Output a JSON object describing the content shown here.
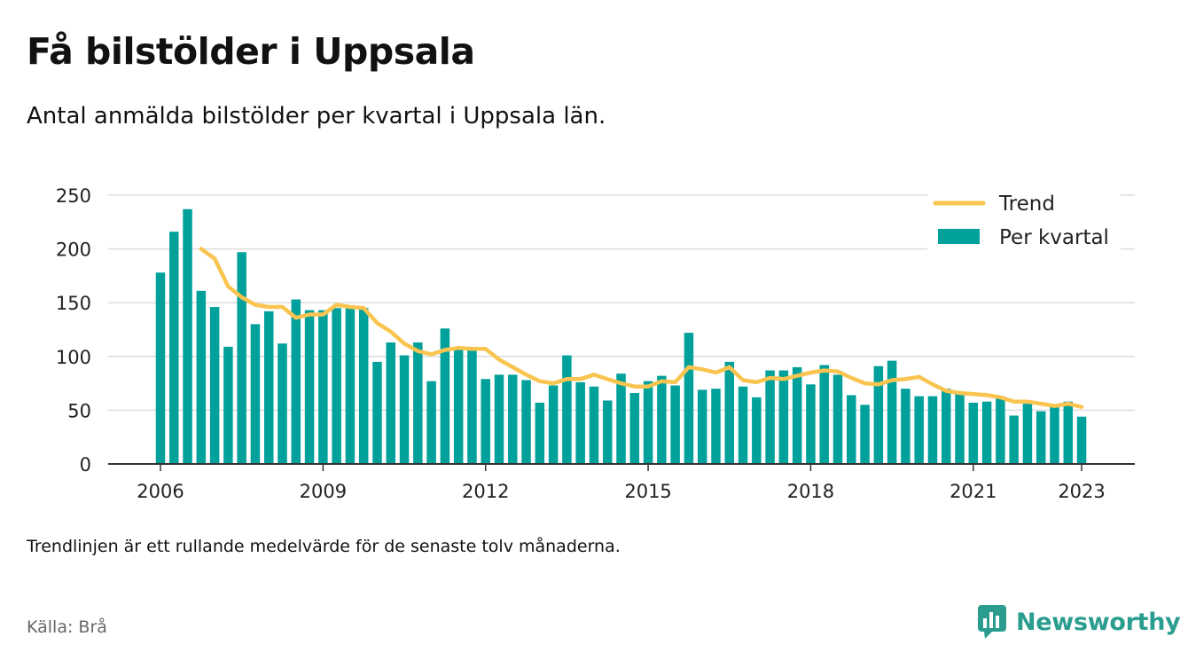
{
  "title": "Få bilstölder i Uppsala",
  "subtitle": "Antal anmälda bilstölder per kvartal i Uppsala län.",
  "note": "Trendlinjen är ett rullande medelvärde för de senaste tolv månaderna.",
  "source": "Källa: Brå",
  "brand": {
    "name": "Newsworthy",
    "icon": "bar-chart-icon"
  },
  "colors": {
    "bars": "#00a19a",
    "trend": "#f9c44f",
    "grid": "#dddddd",
    "axis": "#333333",
    "brand": "#2a9d8f"
  },
  "chart_data": {
    "type": "bar",
    "title": "Få bilstölder i Uppsala",
    "subtitle": "Antal anmälda bilstölder per kvartal i Uppsala län.",
    "xlabel": "",
    "ylabel": "",
    "ylim": [
      0,
      250
    ],
    "yticks": [
      0,
      50,
      100,
      150,
      200,
      250
    ],
    "xticks": [
      "2006",
      "2009",
      "2012",
      "2015",
      "2018",
      "2021",
      "2023"
    ],
    "grid": true,
    "legend_position": "top-right",
    "x_start": "2006 Q1",
    "x_end": "2023 Q1",
    "series": [
      {
        "name": "Per kvartal",
        "type": "bar",
        "values": [
          178,
          216,
          237,
          161,
          146,
          109,
          197,
          130,
          142,
          112,
          153,
          143,
          143,
          145,
          147,
          145,
          95,
          113,
          101,
          113,
          77,
          126,
          107,
          107,
          79,
          83,
          83,
          78,
          57,
          73,
          101,
          76,
          72,
          59,
          84,
          66,
          77,
          82,
          73,
          122,
          69,
          70,
          95,
          72,
          62,
          87,
          87,
          90,
          74,
          92,
          83,
          64,
          55,
          91,
          96,
          70,
          63,
          63,
          70,
          65,
          57,
          58,
          63,
          45,
          56,
          49,
          53,
          58,
          44
        ]
      },
      {
        "name": "Trend",
        "type": "line",
        "values": [
          null,
          null,
          null,
          200,
          191,
          165,
          155,
          148,
          146,
          146,
          136,
          139,
          139,
          148,
          146,
          145,
          131,
          123,
          112,
          105,
          102,
          106,
          108,
          107,
          107,
          97,
          90,
          83,
          77,
          75,
          79,
          79,
          83,
          79,
          75,
          72,
          72,
          77,
          76,
          90,
          88,
          85,
          90,
          78,
          76,
          80,
          79,
          82,
          85,
          87,
          86,
          80,
          75,
          74,
          78,
          79,
          81,
          74,
          68,
          66,
          65,
          64,
          62,
          58,
          58,
          56,
          54,
          56,
          53
        ]
      }
    ]
  }
}
